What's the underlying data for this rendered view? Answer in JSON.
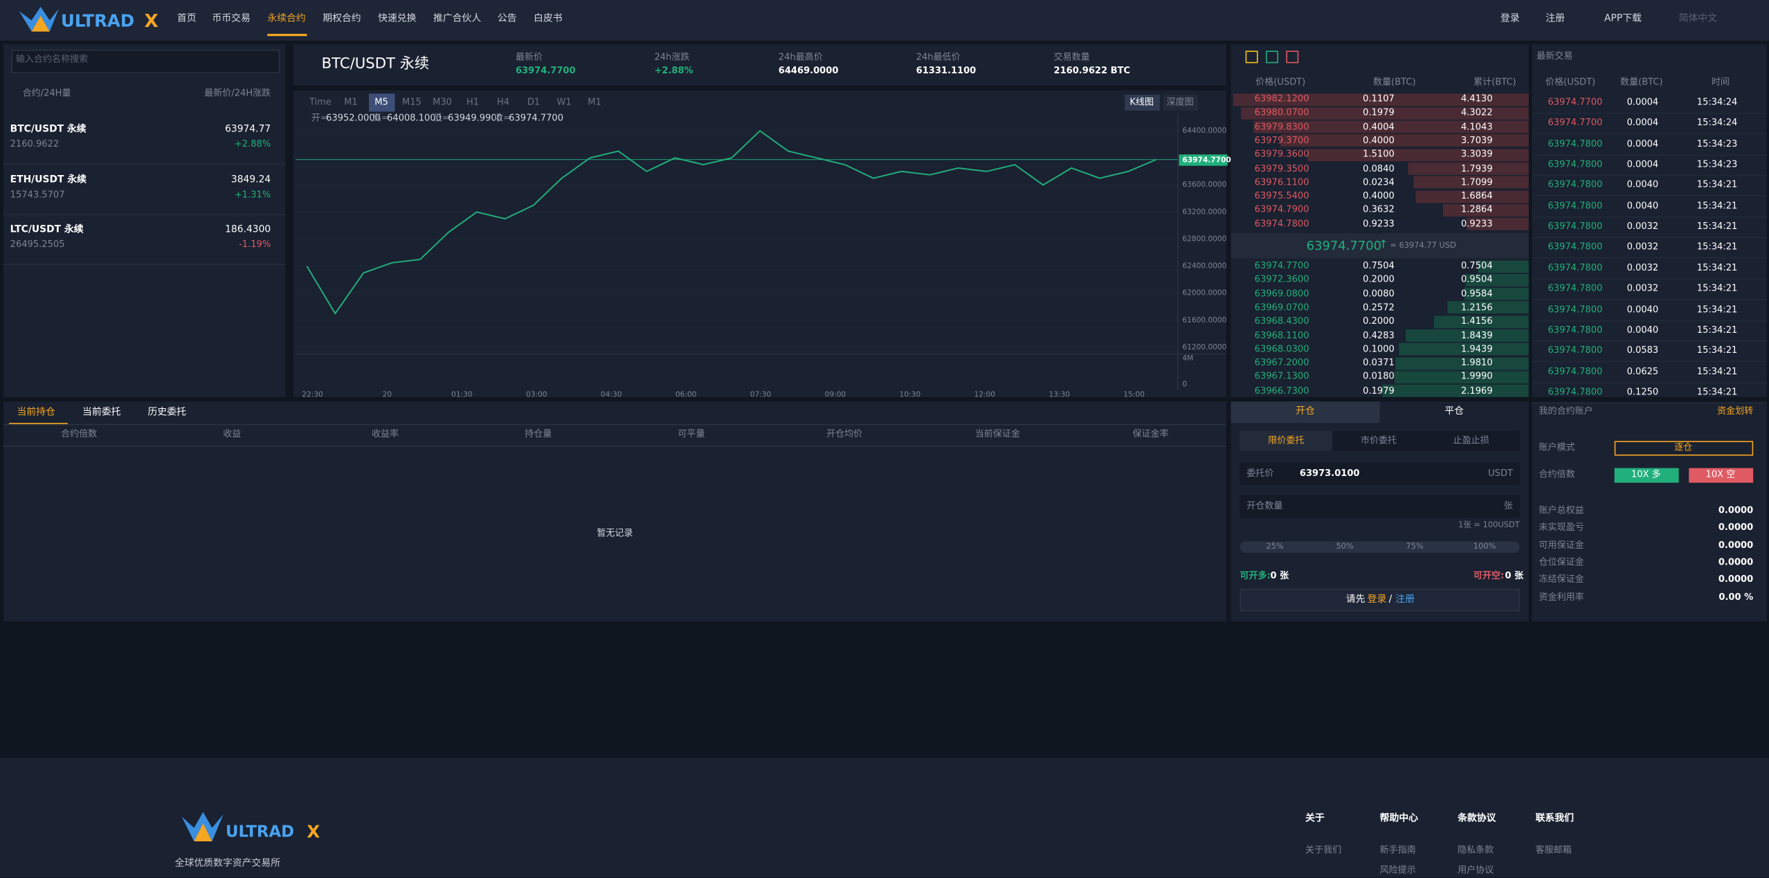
{
  "header": {
    "logo": {
      "text": "ULTRAD",
      "mark": "X"
    },
    "nav": [
      "首页",
      "币币交易",
      "永续合约",
      "期权合约",
      "快速兑换",
      "推广合伙人",
      "公告",
      "白皮书"
    ],
    "active": 2,
    "right": [
      "登录",
      "注册",
      "APP下载",
      "简体中文"
    ]
  },
  "markets": {
    "search_placeholder": "输入合约名称搜索",
    "col1": "合约/24H量",
    "col2": "最新价/24H涨跌",
    "rows": [
      {
        "name": "BTC/USDT 永续",
        "volume": "2160.9622",
        "price": "63974.77",
        "change": "+2.88%",
        "color": "#21b07c"
      },
      {
        "name": "ETH/USDT 永续",
        "volume": "15743.5707",
        "price": "3849.24",
        "change": "+1.31%",
        "color": "#21b07c"
      },
      {
        "name": "LTC/USDT 永续",
        "volume": "26495.2505",
        "price": "186.4300",
        "change": "-1.19%",
        "color": "#e05a63"
      }
    ]
  },
  "ticker": {
    "symbol": "BTC/USDT 永续",
    "stats": [
      {
        "label": "最新价",
        "value": "63974.7700",
        "color": "#21b07c"
      },
      {
        "label": "24h涨跌",
        "value": "+2.88%",
        "color": "#21b07c"
      },
      {
        "label": "24h最高价",
        "value": "64469.0000",
        "color": "#ffffff"
      },
      {
        "label": "24h最低价",
        "value": "61331.1100",
        "color": "#ffffff"
      },
      {
        "label": "交易数量",
        "value": "2160.9622 BTC",
        "color": "#ffffff"
      }
    ]
  },
  "chart_toolbar": {
    "intervals": [
      "Time",
      "M1",
      "M5",
      "M15",
      "M30",
      "H1",
      "H4",
      "D1",
      "W1",
      "M1"
    ],
    "active": 2,
    "views": [
      "K线图",
      "深度图"
    ]
  },
  "ohlc": [
    {
      "label": "开=",
      "value": "63952.0000"
    },
    {
      "label": "高=",
      "value": "64008.1000"
    },
    {
      "label": "低=",
      "value": "63949.9900"
    },
    {
      "label": "收=",
      "value": "63974.7700"
    }
  ],
  "chart_data": {
    "type": "line",
    "color": "#21b07c",
    "values": [
      62400,
      61700,
      62300,
      62450,
      62500,
      62900,
      63200,
      63100,
      63300,
      63700,
      64000,
      64100,
      63800,
      64000,
      63900,
      64000,
      64400,
      64100,
      64000,
      63900,
      63700,
      63800,
      63750,
      63850,
      63800,
      63900,
      63600,
      63850,
      63700,
      63800,
      63974.77
    ],
    "ylim": [
      61100,
      64500
    ],
    "yticks": [
      {
        "value": 64400,
        "label": "64400.0000"
      },
      {
        "value": 64000,
        "label": "64000.0000"
      },
      {
        "value": 63600,
        "label": "63600.0000"
      },
      {
        "value": 63200,
        "label": "63200.0000"
      },
      {
        "value": 62800,
        "label": "62800.0000"
      },
      {
        "value": 62400,
        "label": "62400.0000"
      },
      {
        "value": 62000,
        "label": "62000.0000"
      },
      {
        "value": 61600,
        "label": "61600.0000"
      },
      {
        "value": 61200,
        "label": "61200.0000"
      }
    ],
    "last_price": {
      "value": 63974.77,
      "label": "63974.7700"
    },
    "xticks": [
      "22:30",
      "20",
      "01:30",
      "03:00",
      "04:30",
      "06:00",
      "07:30",
      "09:00",
      "10:30",
      "12:00",
      "13:30",
      "15:00"
    ],
    "volume_ticks": [
      "4M",
      "0"
    ]
  },
  "orderbook": {
    "headers": [
      "价格(USDT)",
      "数量(BTC)",
      "累计(BTC)"
    ],
    "asks": [
      [
        "63982.1200",
        "0.1107",
        "4.4130"
      ],
      [
        "63980.0700",
        "0.1979",
        "4.3022"
      ],
      [
        "63979.8300",
        "0.4004",
        "4.1043"
      ],
      [
        "63979.3700",
        "0.4000",
        "3.7039"
      ],
      [
        "63979.3600",
        "1.5100",
        "3.3039"
      ],
      [
        "63979.3500",
        "0.0840",
        "1.7939"
      ],
      [
        "63976.1100",
        "0.0234",
        "1.7099"
      ],
      [
        "63975.5400",
        "0.4000",
        "1.6864"
      ],
      [
        "63974.7900",
        "0.3632",
        "1.2864"
      ],
      [
        "63974.7800",
        "0.9233",
        "0.9233"
      ]
    ],
    "bids": [
      [
        "63974.7700",
        "0.7504",
        "0.7504"
      ],
      [
        "63972.3600",
        "0.2000",
        "0.9504"
      ],
      [
        "63969.0800",
        "0.0080",
        "0.9584"
      ],
      [
        "63969.0700",
        "0.2572",
        "1.2156"
      ],
      [
        "63968.4300",
        "0.2000",
        "1.4156"
      ],
      [
        "63968.1100",
        "0.4283",
        "1.8439"
      ],
      [
        "63968.0300",
        "0.1000",
        "1.9439"
      ],
      [
        "63967.2000",
        "0.0371",
        "1.9810"
      ],
      [
        "63967.1300",
        "0.0180",
        "1.9990"
      ],
      [
        "63966.7300",
        "0.1979",
        "2.1969"
      ]
    ],
    "last": "63974.7700",
    "arrow": "↑",
    "last_usd": "≈ 63974.77 USD",
    "ask_color": "#e05a63",
    "bid_color": "#21b07c"
  },
  "trades": {
    "title": "最新交易",
    "headers": [
      "价格(USDT)",
      "数量(BTC)",
      "时间"
    ],
    "rows": [
      {
        "price": "63974.7700",
        "qty": "0.0004",
        "time": "15:34:24",
        "color": "#e05a63"
      },
      {
        "price": "63974.7700",
        "qty": "0.0004",
        "time": "15:34:24",
        "color": "#e05a63"
      },
      {
        "price": "63974.7800",
        "qty": "0.0004",
        "time": "15:34:23",
        "color": "#21b07c"
      },
      {
        "price": "63974.7800",
        "qty": "0.0004",
        "time": "15:34:23",
        "color": "#21b07c"
      },
      {
        "price": "63974.7800",
        "qty": "0.0040",
        "time": "15:34:21",
        "color": "#21b07c"
      },
      {
        "price": "63974.7800",
        "qty": "0.0040",
        "time": "15:34:21",
        "color": "#21b07c"
      },
      {
        "price": "63974.7800",
        "qty": "0.0032",
        "time": "15:34:21",
        "color": "#21b07c"
      },
      {
        "price": "63974.7800",
        "qty": "0.0032",
        "time": "15:34:21",
        "color": "#21b07c"
      },
      {
        "price": "63974.7800",
        "qty": "0.0032",
        "time": "15:34:21",
        "color": "#21b07c"
      },
      {
        "price": "63974.7800",
        "qty": "0.0032",
        "time": "15:34:21",
        "color": "#21b07c"
      },
      {
        "price": "63974.7800",
        "qty": "0.0040",
        "time": "15:34:21",
        "color": "#21b07c"
      },
      {
        "price": "63974.7800",
        "qty": "0.0040",
        "time": "15:34:21",
        "color": "#21b07c"
      },
      {
        "price": "63974.7800",
        "qty": "0.0583",
        "time": "15:34:21",
        "color": "#21b07c"
      },
      {
        "price": "63974.7800",
        "qty": "0.0625",
        "time": "15:34:21",
        "color": "#21b07c"
      },
      {
        "price": "63974.7800",
        "qty": "0.1250",
        "time": "15:34:21",
        "color": "#21b07c"
      }
    ]
  },
  "positions": {
    "tabs": [
      "当前持仓",
      "当前委托",
      "历史委托"
    ],
    "columns": [
      "合约倍数",
      "收益",
      "收益率",
      "持仓量",
      "可平量",
      "开仓均价",
      "当前保证金",
      "保证金率"
    ],
    "empty": "暂无记录"
  },
  "order_form": {
    "tabs": [
      "开仓",
      "平仓"
    ],
    "types": [
      "限价委托",
      "市价委托",
      "止盈止损"
    ],
    "price_label": "委托价",
    "price": "63973.0100",
    "price_unit": "USDT",
    "qty_label": "开仓数量",
    "qty_unit": "张",
    "contract_note": "1张 = 100USDT",
    "percents": [
      "25%",
      "50%",
      "75%",
      "100%"
    ],
    "long_label": "可开多:",
    "long_value": "0 张",
    "short_label": "可开空:",
    "short_value": "0 张",
    "login_prompt": "请先",
    "login": "登录",
    "sep": "/",
    "register": "注册"
  },
  "account": {
    "title": "我的合约账户",
    "transfer": "资金划转",
    "mode_label": "账户模式",
    "mode": "逐仓",
    "leverage_label": "合约倍数",
    "long": "10X 多",
    "short": "10X 空",
    "stats": [
      {
        "label": "账户总权益",
        "value": "0.0000"
      },
      {
        "label": "未实现盈亏",
        "value": "0.0000"
      },
      {
        "label": "可用保证金",
        "value": "0.0000"
      },
      {
        "label": "仓位保证金",
        "value": "0.0000"
      },
      {
        "label": "冻结保证金",
        "value": "0.0000"
      },
      {
        "label": "资金利用率",
        "value": "0.00 %"
      }
    ]
  },
  "footer": {
    "slogan": "全球优质数字资产交易所",
    "columns": [
      {
        "title": "关于",
        "links": [
          "关于我们"
        ]
      },
      {
        "title": "帮助中心",
        "links": [
          "新手指南",
          "风险提示"
        ]
      },
      {
        "title": "条款协议",
        "links": [
          "隐私条款",
          "用户协议"
        ]
      },
      {
        "title": "联系我们",
        "links": [
          "客服邮箱"
        ]
      }
    ]
  }
}
